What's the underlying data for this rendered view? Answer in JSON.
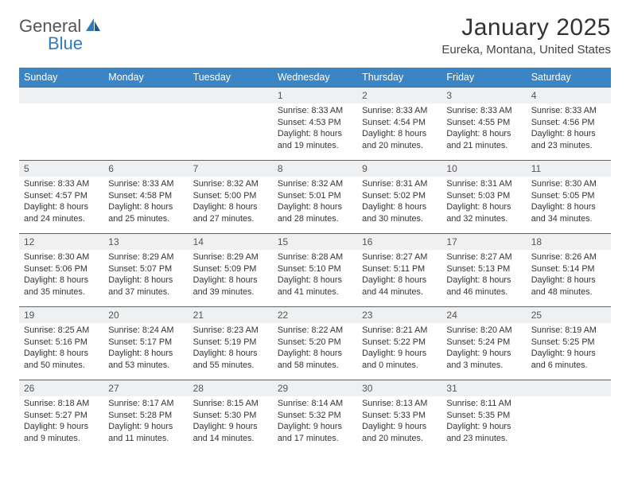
{
  "logo": {
    "general": "General",
    "blue": "Blue"
  },
  "header": {
    "title": "January 2025",
    "subtitle": "Eureka, Montana, United States"
  },
  "colors": {
    "header_bg": "#3b85c4",
    "header_text": "#ffffff",
    "row_border": "#2f6ea6",
    "daynum_bg": "#eef0f2",
    "logo_blue": "#2f7bbf"
  },
  "days_of_week": [
    "Sunday",
    "Monday",
    "Tuesday",
    "Wednesday",
    "Thursday",
    "Friday",
    "Saturday"
  ],
  "weeks": [
    [
      {
        "num": "",
        "sunrise": "",
        "sunset": "",
        "daylight": ""
      },
      {
        "num": "",
        "sunrise": "",
        "sunset": "",
        "daylight": ""
      },
      {
        "num": "",
        "sunrise": "",
        "sunset": "",
        "daylight": ""
      },
      {
        "num": "1",
        "sunrise": "Sunrise: 8:33 AM",
        "sunset": "Sunset: 4:53 PM",
        "daylight": "Daylight: 8 hours and 19 minutes."
      },
      {
        "num": "2",
        "sunrise": "Sunrise: 8:33 AM",
        "sunset": "Sunset: 4:54 PM",
        "daylight": "Daylight: 8 hours and 20 minutes."
      },
      {
        "num": "3",
        "sunrise": "Sunrise: 8:33 AM",
        "sunset": "Sunset: 4:55 PM",
        "daylight": "Daylight: 8 hours and 21 minutes."
      },
      {
        "num": "4",
        "sunrise": "Sunrise: 8:33 AM",
        "sunset": "Sunset: 4:56 PM",
        "daylight": "Daylight: 8 hours and 23 minutes."
      }
    ],
    [
      {
        "num": "5",
        "sunrise": "Sunrise: 8:33 AM",
        "sunset": "Sunset: 4:57 PM",
        "daylight": "Daylight: 8 hours and 24 minutes."
      },
      {
        "num": "6",
        "sunrise": "Sunrise: 8:33 AM",
        "sunset": "Sunset: 4:58 PM",
        "daylight": "Daylight: 8 hours and 25 minutes."
      },
      {
        "num": "7",
        "sunrise": "Sunrise: 8:32 AM",
        "sunset": "Sunset: 5:00 PM",
        "daylight": "Daylight: 8 hours and 27 minutes."
      },
      {
        "num": "8",
        "sunrise": "Sunrise: 8:32 AM",
        "sunset": "Sunset: 5:01 PM",
        "daylight": "Daylight: 8 hours and 28 minutes."
      },
      {
        "num": "9",
        "sunrise": "Sunrise: 8:31 AM",
        "sunset": "Sunset: 5:02 PM",
        "daylight": "Daylight: 8 hours and 30 minutes."
      },
      {
        "num": "10",
        "sunrise": "Sunrise: 8:31 AM",
        "sunset": "Sunset: 5:03 PM",
        "daylight": "Daylight: 8 hours and 32 minutes."
      },
      {
        "num": "11",
        "sunrise": "Sunrise: 8:30 AM",
        "sunset": "Sunset: 5:05 PM",
        "daylight": "Daylight: 8 hours and 34 minutes."
      }
    ],
    [
      {
        "num": "12",
        "sunrise": "Sunrise: 8:30 AM",
        "sunset": "Sunset: 5:06 PM",
        "daylight": "Daylight: 8 hours and 35 minutes."
      },
      {
        "num": "13",
        "sunrise": "Sunrise: 8:29 AM",
        "sunset": "Sunset: 5:07 PM",
        "daylight": "Daylight: 8 hours and 37 minutes."
      },
      {
        "num": "14",
        "sunrise": "Sunrise: 8:29 AM",
        "sunset": "Sunset: 5:09 PM",
        "daylight": "Daylight: 8 hours and 39 minutes."
      },
      {
        "num": "15",
        "sunrise": "Sunrise: 8:28 AM",
        "sunset": "Sunset: 5:10 PM",
        "daylight": "Daylight: 8 hours and 41 minutes."
      },
      {
        "num": "16",
        "sunrise": "Sunrise: 8:27 AM",
        "sunset": "Sunset: 5:11 PM",
        "daylight": "Daylight: 8 hours and 44 minutes."
      },
      {
        "num": "17",
        "sunrise": "Sunrise: 8:27 AM",
        "sunset": "Sunset: 5:13 PM",
        "daylight": "Daylight: 8 hours and 46 minutes."
      },
      {
        "num": "18",
        "sunrise": "Sunrise: 8:26 AM",
        "sunset": "Sunset: 5:14 PM",
        "daylight": "Daylight: 8 hours and 48 minutes."
      }
    ],
    [
      {
        "num": "19",
        "sunrise": "Sunrise: 8:25 AM",
        "sunset": "Sunset: 5:16 PM",
        "daylight": "Daylight: 8 hours and 50 minutes."
      },
      {
        "num": "20",
        "sunrise": "Sunrise: 8:24 AM",
        "sunset": "Sunset: 5:17 PM",
        "daylight": "Daylight: 8 hours and 53 minutes."
      },
      {
        "num": "21",
        "sunrise": "Sunrise: 8:23 AM",
        "sunset": "Sunset: 5:19 PM",
        "daylight": "Daylight: 8 hours and 55 minutes."
      },
      {
        "num": "22",
        "sunrise": "Sunrise: 8:22 AM",
        "sunset": "Sunset: 5:20 PM",
        "daylight": "Daylight: 8 hours and 58 minutes."
      },
      {
        "num": "23",
        "sunrise": "Sunrise: 8:21 AM",
        "sunset": "Sunset: 5:22 PM",
        "daylight": "Daylight: 9 hours and 0 minutes."
      },
      {
        "num": "24",
        "sunrise": "Sunrise: 8:20 AM",
        "sunset": "Sunset: 5:24 PM",
        "daylight": "Daylight: 9 hours and 3 minutes."
      },
      {
        "num": "25",
        "sunrise": "Sunrise: 8:19 AM",
        "sunset": "Sunset: 5:25 PM",
        "daylight": "Daylight: 9 hours and 6 minutes."
      }
    ],
    [
      {
        "num": "26",
        "sunrise": "Sunrise: 8:18 AM",
        "sunset": "Sunset: 5:27 PM",
        "daylight": "Daylight: 9 hours and 9 minutes."
      },
      {
        "num": "27",
        "sunrise": "Sunrise: 8:17 AM",
        "sunset": "Sunset: 5:28 PM",
        "daylight": "Daylight: 9 hours and 11 minutes."
      },
      {
        "num": "28",
        "sunrise": "Sunrise: 8:15 AM",
        "sunset": "Sunset: 5:30 PM",
        "daylight": "Daylight: 9 hours and 14 minutes."
      },
      {
        "num": "29",
        "sunrise": "Sunrise: 8:14 AM",
        "sunset": "Sunset: 5:32 PM",
        "daylight": "Daylight: 9 hours and 17 minutes."
      },
      {
        "num": "30",
        "sunrise": "Sunrise: 8:13 AM",
        "sunset": "Sunset: 5:33 PM",
        "daylight": "Daylight: 9 hours and 20 minutes."
      },
      {
        "num": "31",
        "sunrise": "Sunrise: 8:11 AM",
        "sunset": "Sunset: 5:35 PM",
        "daylight": "Daylight: 9 hours and 23 minutes."
      },
      {
        "num": "",
        "sunrise": "",
        "sunset": "",
        "daylight": ""
      }
    ]
  ]
}
